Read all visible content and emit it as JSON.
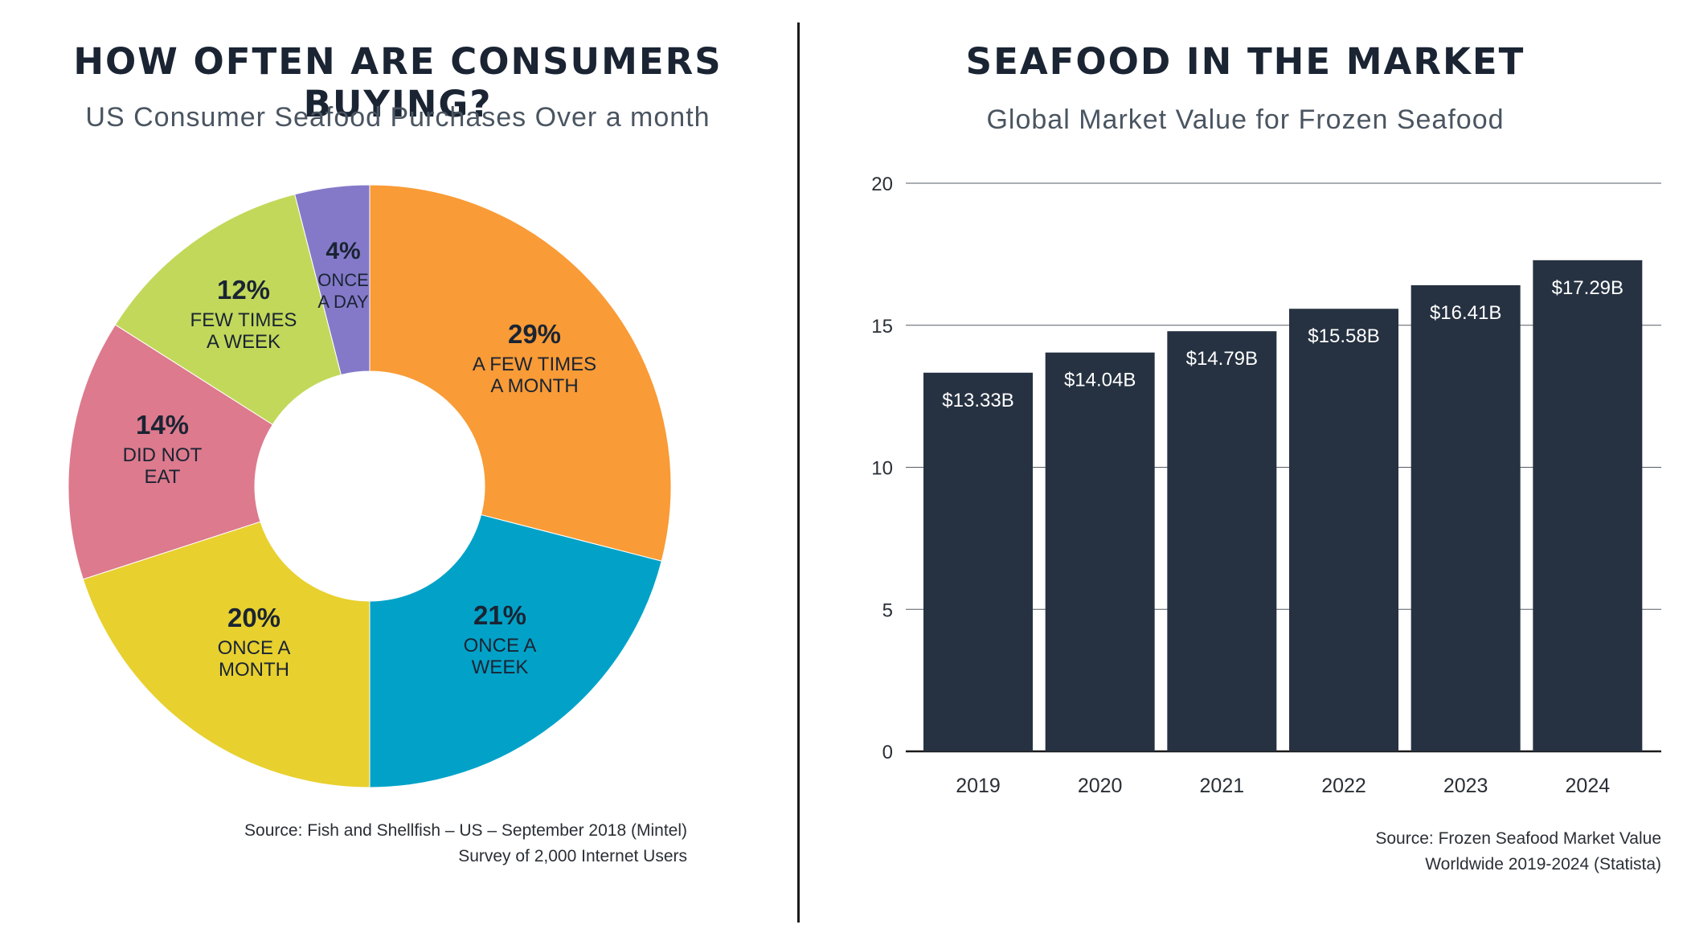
{
  "left": {
    "title": "HOW OFTEN ARE CONSUMERS BUYING?",
    "subtitle": "US Consumer Seafood Purchases Over a month",
    "source_line1": "Source: Fish and Shellfish – US – September 2018 (Mintel)",
    "source_line2": "Survey of 2,000 Internet Users"
  },
  "right": {
    "title": "SEAFOOD IN THE MARKET",
    "subtitle": "Global Market Value for Frozen Seafood",
    "source_line1": "Source: Frozen Seafood Market Value",
    "source_line2": "Worldwide 2019-2024 (Statista)"
  },
  "chart_data": [
    {
      "type": "pie",
      "donut": true,
      "title": "HOW OFTEN ARE CONSUMERS BUYING?",
      "subtitle": "US Consumer Seafood Purchases Over a month",
      "slices": [
        {
          "pct_label": "29%",
          "value": 29,
          "label_lines": [
            "A FEW TIMES",
            "A MONTH"
          ],
          "color": "#f99b36"
        },
        {
          "pct_label": "21%",
          "value": 21,
          "label_lines": [
            "ONCE A",
            "WEEK"
          ],
          "color": "#02a2c8"
        },
        {
          "pct_label": "20%",
          "value": 20,
          "label_lines": [
            "ONCE A",
            "MONTH"
          ],
          "color": "#e8d02e"
        },
        {
          "pct_label": "14%",
          "value": 14,
          "label_lines": [
            "DID NOT",
            "EAT"
          ],
          "color": "#dd7a8d"
        },
        {
          "pct_label": "12%",
          "value": 12,
          "label_lines": [
            "FEW TIMES",
            "A WEEK"
          ],
          "color": "#c2d85a"
        },
        {
          "pct_label": "4%",
          "value": 4,
          "label_lines": [
            "ONCE",
            "A DAY"
          ],
          "color": "#8479c9"
        }
      ]
    },
    {
      "type": "bar",
      "title": "SEAFOOD IN THE MARKET",
      "subtitle": "Global Market Value for Frozen Seafood",
      "categories": [
        "2019",
        "2020",
        "2021",
        "2022",
        "2023",
        "2024"
      ],
      "values": [
        13.33,
        14.04,
        14.79,
        15.58,
        16.41,
        17.29
      ],
      "value_labels": [
        "$13.33B",
        "$14.04B",
        "$14.79B",
        "$15.58B",
        "$16.41B",
        "$17.29B"
      ],
      "ylim": [
        0,
        20
      ],
      "yticks": [
        0,
        5,
        10,
        15,
        20
      ],
      "grid": true,
      "bar_color": "#263241"
    }
  ]
}
